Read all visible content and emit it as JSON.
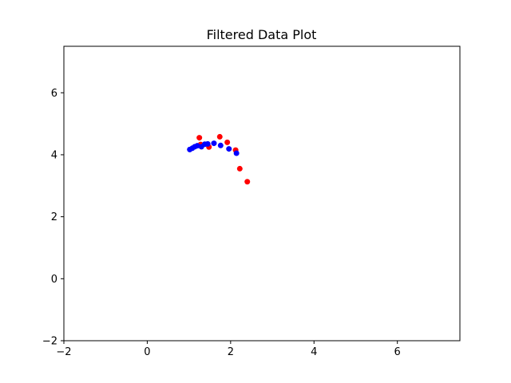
{
  "chart_data": {
    "type": "scatter",
    "title": "Filtered Data Plot",
    "xlabel": "",
    "ylabel": "",
    "xlim": [
      -2,
      7.5
    ],
    "ylim": [
      -2,
      7.5
    ],
    "x_ticks": [
      -2,
      0,
      2,
      4,
      6
    ],
    "y_ticks": [
      -2,
      0,
      2,
      4,
      6
    ],
    "x_tick_labels": [
      "−2",
      "0",
      "2",
      "4",
      "6"
    ],
    "y_tick_labels": [
      "−2",
      "0",
      "2",
      "4",
      "6"
    ],
    "grid": false,
    "series": [
      {
        "color": "#ff0000",
        "points": [
          {
            "x": 1.25,
            "y": 4.55
          },
          {
            "x": 1.28,
            "y": 4.33
          },
          {
            "x": 1.48,
            "y": 4.25
          },
          {
            "x": 1.74,
            "y": 4.58
          },
          {
            "x": 1.92,
            "y": 4.4
          },
          {
            "x": 2.12,
            "y": 4.15
          },
          {
            "x": 2.22,
            "y": 3.55
          },
          {
            "x": 2.4,
            "y": 3.13
          }
        ]
      },
      {
        "color": "#0000ff",
        "points": [
          {
            "x": 1.02,
            "y": 4.17
          },
          {
            "x": 1.08,
            "y": 4.21
          },
          {
            "x": 1.14,
            "y": 4.26
          },
          {
            "x": 1.2,
            "y": 4.29
          },
          {
            "x": 1.3,
            "y": 4.26
          },
          {
            "x": 1.38,
            "y": 4.34
          },
          {
            "x": 1.45,
            "y": 4.35
          },
          {
            "x": 1.6,
            "y": 4.37
          },
          {
            "x": 1.76,
            "y": 4.3
          },
          {
            "x": 1.96,
            "y": 4.19
          },
          {
            "x": 2.14,
            "y": 4.05
          }
        ]
      }
    ]
  }
}
